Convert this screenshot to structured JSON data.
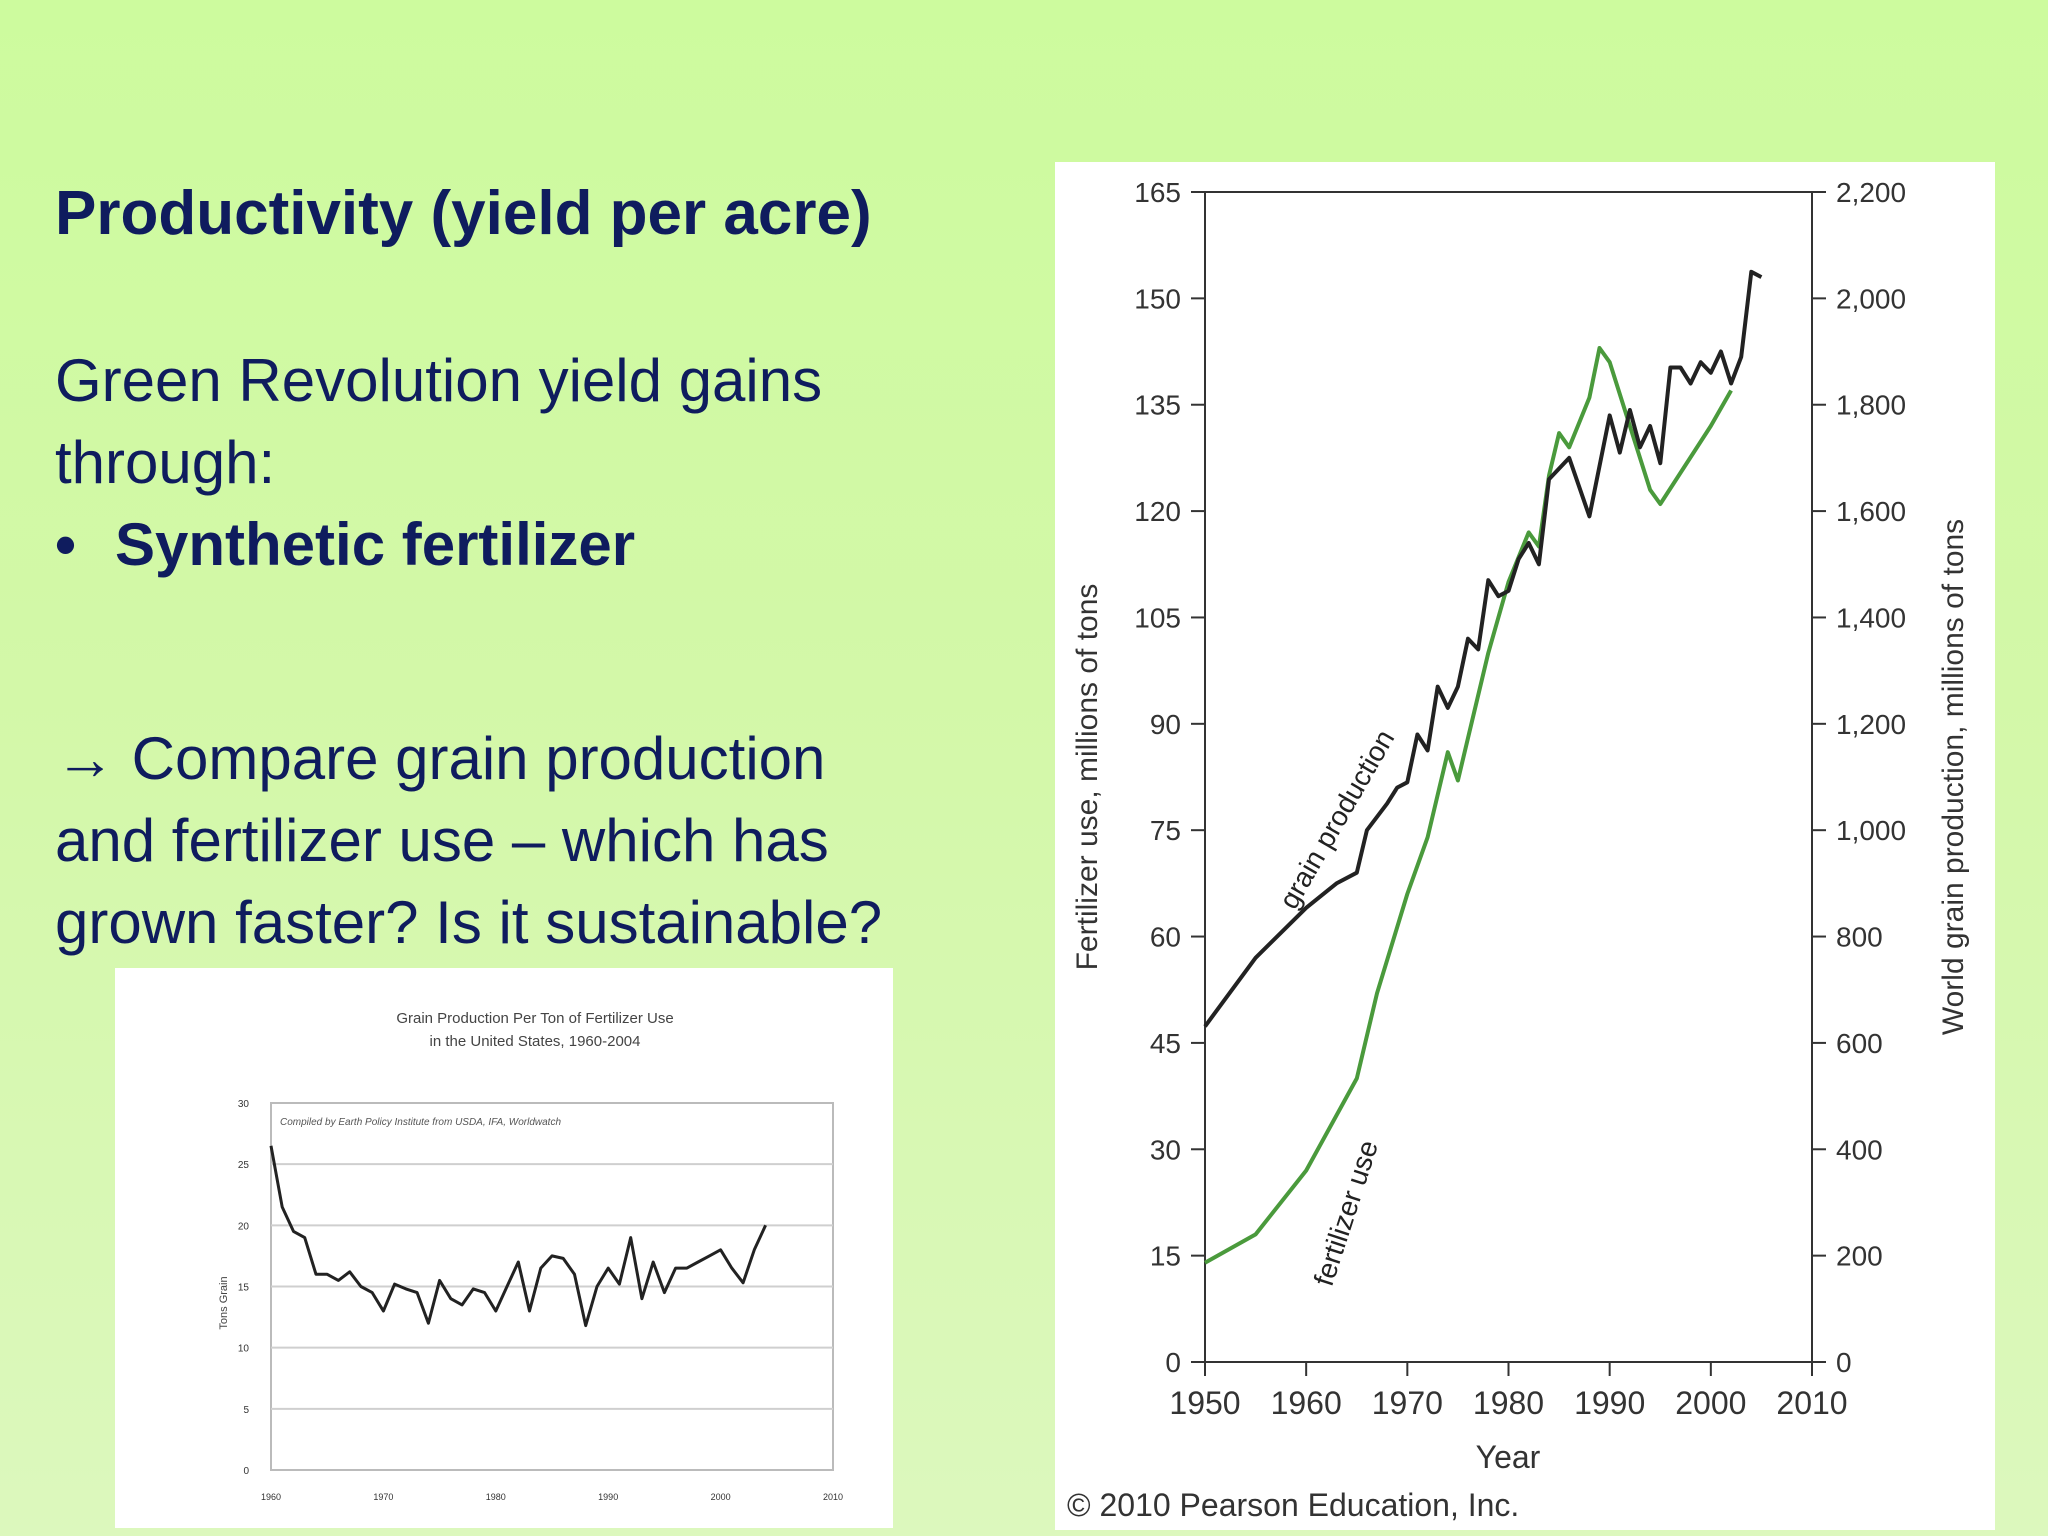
{
  "slide": {
    "heading": "Productivity (yield per acre)",
    "intro_line1": "Green Revolution yield gains",
    "intro_line2": "through:",
    "bullet_symbol": "•",
    "bullet_text": "Synthetic fertilizer",
    "question_line1": "→ Compare grain production",
    "question_line2": "and fertilizer use – which has",
    "question_line3": "grown faster? Is it sustainable?"
  },
  "chart_data": [
    {
      "type": "line",
      "title": "",
      "xlabel": "Year",
      "ylabel": "Fertilizer use, millions of tons",
      "y2label": "World grain production, millions of tons",
      "xlim": [
        1950,
        2010
      ],
      "ylim": [
        0,
        165
      ],
      "y2lim": [
        0,
        2200
      ],
      "x_ticks": [
        1950,
        1960,
        1970,
        1980,
        1990,
        2000,
        2010
      ],
      "y_ticks": [
        "0",
        "15",
        "30",
        "45",
        "60",
        "75",
        "90",
        "105",
        "120",
        "135",
        "150",
        "165"
      ],
      "y2_ticks": [
        "0",
        "200",
        "400",
        "600",
        "800",
        "1,000",
        "1,200",
        "1,400",
        "1,600",
        "1,800",
        "2,000",
        "2,200"
      ],
      "grid": false,
      "credit": "© 2010 Pearson Education, Inc.",
      "series": [
        {
          "name": "grain production",
          "color": "#222222",
          "axis": "right",
          "x": [
            1950,
            1955,
            1960,
            1963,
            1965,
            1966,
            1968,
            1969,
            1970,
            1971,
            1972,
            1973,
            1974,
            1975,
            1976,
            1977,
            1978,
            1979,
            1980,
            1981,
            1982,
            1983,
            1984,
            1986,
            1988,
            1990,
            1991,
            1992,
            1993,
            1994,
            1995,
            1996,
            1997,
            1998,
            1999,
            2000,
            2001,
            2002,
            2003,
            2004,
            2005
          ],
          "values": [
            631,
            760,
            854,
            900,
            920,
            1000,
            1050,
            1080,
            1090,
            1180,
            1150,
            1270,
            1230,
            1270,
            1360,
            1340,
            1470,
            1440,
            1450,
            1510,
            1540,
            1500,
            1660,
            1700,
            1590,
            1780,
            1710,
            1790,
            1720,
            1760,
            1690,
            1870,
            1870,
            1840,
            1880,
            1860,
            1900,
            1840,
            1890,
            2050,
            2040
          ]
        },
        {
          "name": "fertilizer use",
          "color": "#4a9a3c",
          "axis": "left",
          "x": [
            1950,
            1955,
            1960,
            1965,
            1967,
            1970,
            1972,
            1974,
            1975,
            1976,
            1978,
            1980,
            1982,
            1983,
            1984,
            1985,
            1986,
            1988,
            1989,
            1990,
            1992,
            1994,
            1995,
            2000,
            2002
          ],
          "values": [
            14,
            18,
            27,
            40,
            52,
            66,
            74,
            86,
            82,
            88,
            100,
            110,
            117,
            115,
            125,
            131,
            129,
            136,
            143,
            141,
            132,
            123,
            121,
            132,
            137
          ]
        }
      ]
    },
    {
      "type": "line",
      "title": "Grain Production Per Ton of Fertilizer Use",
      "subtitle": "in the United States, 1960-2004",
      "annotation": "Compiled by Earth Policy Institute from USDA, IFA, Worldwatch",
      "xlabel": "",
      "ylabel": "Tons Grain",
      "xlim": [
        1960,
        2010
      ],
      "ylim": [
        0,
        30
      ],
      "x_ticks": [
        "1960",
        "1970",
        "1980",
        "1990",
        "2000",
        "2010"
      ],
      "y_ticks": [
        "0",
        "5",
        "10",
        "15",
        "20",
        "25",
        "30"
      ],
      "grid": true,
      "series": [
        {
          "color": "#222222",
          "x": [
            1960,
            1961,
            1962,
            1963,
            1964,
            1965,
            1966,
            1967,
            1968,
            1969,
            1970,
            1971,
            1972,
            1973,
            1974,
            1975,
            1976,
            1977,
            1978,
            1979,
            1980,
            1981,
            1982,
            1983,
            1984,
            1985,
            1986,
            1987,
            1988,
            1989,
            1990,
            1991,
            1992,
            1993,
            1994,
            1995,
            1996,
            1997,
            1998,
            1999,
            2000,
            2001,
            2002,
            2003,
            2004
          ],
          "values": [
            26.5,
            21.5,
            19.5,
            19.0,
            16.0,
            16.0,
            15.5,
            16.2,
            15.0,
            14.5,
            13.0,
            15.2,
            14.8,
            14.5,
            12.0,
            15.5,
            14.0,
            13.5,
            14.8,
            14.5,
            13.0,
            15.0,
            17.0,
            13.0,
            16.5,
            17.5,
            17.3,
            16.0,
            11.8,
            15.0,
            16.5,
            15.2,
            19.0,
            14.0,
            17.0,
            14.5,
            16.5,
            16.5,
            17.0,
            17.5,
            18.0,
            16.5,
            15.3,
            18.0,
            20.0
          ]
        }
      ]
    }
  ]
}
